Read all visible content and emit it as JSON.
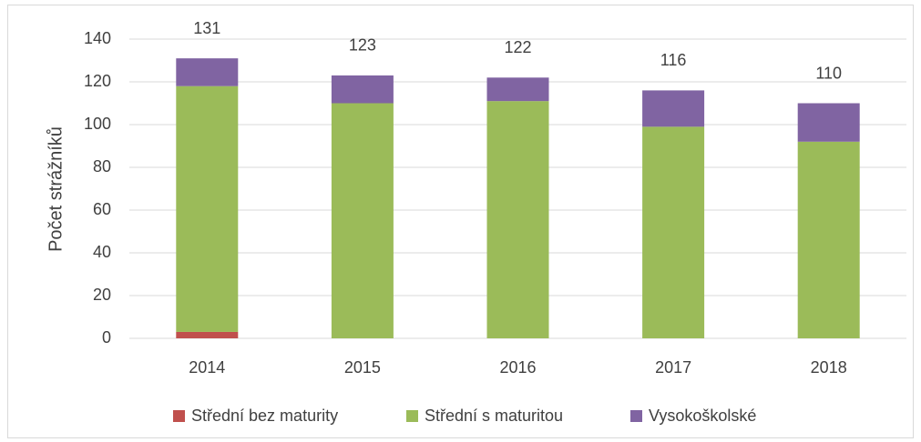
{
  "chart_data": {
    "type": "stacked_bar",
    "y_label": "Počet strážníků",
    "categories": [
      "2014",
      "2015",
      "2016",
      "2017",
      "2018"
    ],
    "series": [
      {
        "name": "Střední bez maturity",
        "color": "#c0504d",
        "values": [
          3,
          0,
          0,
          0,
          0
        ]
      },
      {
        "name": "Střední s maturitou",
        "color": "#9bbb59",
        "values": [
          115,
          110,
          111,
          99,
          92
        ]
      },
      {
        "name": "Vysokoškolské",
        "color": "#8064a2",
        "values": [
          13,
          13,
          11,
          17,
          18
        ]
      }
    ],
    "totals": [
      131,
      123,
      122,
      116,
      110
    ],
    "ylim": [
      0,
      140
    ],
    "yticks": [
      0,
      20,
      40,
      60,
      80,
      100,
      120,
      140
    ],
    "grid": true,
    "legend": "bottom"
  }
}
